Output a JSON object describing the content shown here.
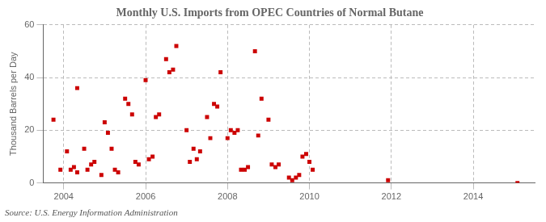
{
  "chart_data": {
    "type": "scatter",
    "title": "Monthly U.S. Imports from OPEC Countries of Normal Butane",
    "ylabel": "Thousand Barrels per Day",
    "annotation": "Source: U.S. Energy Information Administration",
    "x": [
      2003.75,
      2003.92,
      2004.08,
      2004.17,
      2004.25,
      2004.33,
      2004.33,
      2004.5,
      2004.58,
      2004.67,
      2004.75,
      2004.92,
      2005.0,
      2005.08,
      2005.17,
      2005.25,
      2005.33,
      2005.5,
      2005.58,
      2005.67,
      2005.75,
      2005.83,
      2006.0,
      2006.08,
      2006.17,
      2006.25,
      2006.33,
      2006.5,
      2006.58,
      2006.67,
      2006.75,
      2007.0,
      2007.08,
      2007.17,
      2007.25,
      2007.33,
      2007.5,
      2007.58,
      2007.67,
      2007.75,
      2007.83,
      2008.0,
      2008.08,
      2008.17,
      2008.25,
      2008.33,
      2008.42,
      2008.5,
      2008.67,
      2008.75,
      2008.83,
      2009.0,
      2009.08,
      2009.17,
      2009.25,
      2009.5,
      2009.58,
      2009.67,
      2009.75,
      2009.83,
      2009.92,
      2010.0,
      2010.08,
      2011.92,
      2015.08
    ],
    "values": [
      24,
      5,
      12,
      5,
      6,
      4,
      36,
      13,
      5,
      7,
      8,
      3,
      23,
      19,
      13,
      5,
      4,
      32,
      30,
      26,
      8,
      7,
      39,
      9,
      10,
      25,
      26,
      47,
      42,
      43,
      52,
      20,
      8,
      13,
      9,
      12,
      25,
      17,
      30,
      29,
      42,
      17,
      20,
      19,
      20,
      5,
      5,
      6,
      50,
      18,
      32,
      24,
      7,
      6,
      7,
      2,
      1,
      2,
      3,
      10,
      11,
      8,
      5,
      1,
      0
    ],
    "color": "#cc0000",
    "marker": "square",
    "xlim": [
      2003.5,
      2015.5
    ],
    "ylim": [
      0,
      60
    ],
    "xticks": [
      2004,
      2006,
      2008,
      2010,
      2012,
      2014
    ],
    "yticks": [
      0,
      20,
      40,
      60
    ],
    "grid": true
  }
}
